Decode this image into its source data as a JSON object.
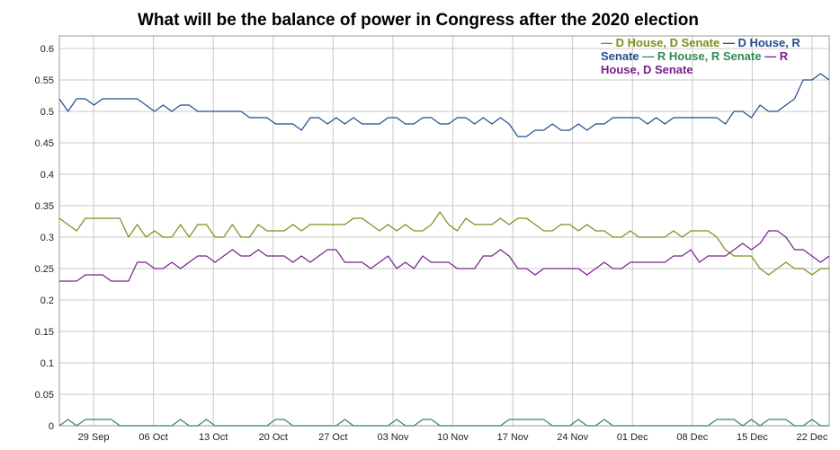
{
  "chart_data": {
    "type": "line",
    "title": "What will be the balance of power in Congress after the 2020 election",
    "xlabel": "",
    "ylabel": "",
    "ylim": [
      0,
      0.62
    ],
    "yticks": [
      "0",
      "0.05",
      "0.1",
      "0.15",
      "0.2",
      "0.25",
      "0.3",
      "0.35",
      "0.4",
      "0.45",
      "0.5",
      "0.55",
      "0.6"
    ],
    "xticks": [
      "29 Sep",
      "06 Oct",
      "13 Oct",
      "20 Oct",
      "27 Oct",
      "03 Nov",
      "10 Nov",
      "17 Nov",
      "24 Nov",
      "01 Dec",
      "08 Dec",
      "15 Dec",
      "22 Dec"
    ],
    "x_start": "2020-09-25",
    "x_end": "2020-12-24",
    "grid": true,
    "legend_position": "top-right",
    "series": [
      {
        "name": "D House, D Senate",
        "color": "#7f8c1a",
        "values": [
          0.33,
          0.32,
          0.31,
          0.33,
          0.33,
          0.33,
          0.33,
          0.33,
          0.3,
          0.32,
          0.3,
          0.31,
          0.3,
          0.3,
          0.32,
          0.3,
          0.32,
          0.32,
          0.3,
          0.3,
          0.32,
          0.3,
          0.3,
          0.32,
          0.31,
          0.31,
          0.31,
          0.32,
          0.31,
          0.32,
          0.32,
          0.32,
          0.32,
          0.32,
          0.33,
          0.33,
          0.32,
          0.31,
          0.32,
          0.31,
          0.32,
          0.31,
          0.31,
          0.32,
          0.34,
          0.32,
          0.31,
          0.33,
          0.32,
          0.32,
          0.32,
          0.33,
          0.32,
          0.33,
          0.33,
          0.32,
          0.31,
          0.31,
          0.32,
          0.32,
          0.31,
          0.32,
          0.31,
          0.31,
          0.3,
          0.3,
          0.31,
          0.3,
          0.3,
          0.3,
          0.3,
          0.31,
          0.3,
          0.31,
          0.31,
          0.31,
          0.3,
          0.28,
          0.27,
          0.27,
          0.27,
          0.25,
          0.24,
          0.25,
          0.26,
          0.25,
          0.25,
          0.24,
          0.25,
          0.25
        ]
      },
      {
        "name": "D House, R Senate",
        "color": "#1f4e8c",
        "values": [
          0.52,
          0.5,
          0.52,
          0.52,
          0.51,
          0.52,
          0.52,
          0.52,
          0.52,
          0.52,
          0.51,
          0.5,
          0.51,
          0.5,
          0.51,
          0.51,
          0.5,
          0.5,
          0.5,
          0.5,
          0.5,
          0.5,
          0.49,
          0.49,
          0.49,
          0.48,
          0.48,
          0.48,
          0.47,
          0.49,
          0.49,
          0.48,
          0.49,
          0.48,
          0.49,
          0.48,
          0.48,
          0.48,
          0.49,
          0.49,
          0.48,
          0.48,
          0.49,
          0.49,
          0.48,
          0.48,
          0.49,
          0.49,
          0.48,
          0.49,
          0.48,
          0.49,
          0.48,
          0.46,
          0.46,
          0.47,
          0.47,
          0.48,
          0.47,
          0.47,
          0.48,
          0.47,
          0.48,
          0.48,
          0.49,
          0.49,
          0.49,
          0.49,
          0.48,
          0.49,
          0.48,
          0.49,
          0.49,
          0.49,
          0.49,
          0.49,
          0.49,
          0.48,
          0.5,
          0.5,
          0.49,
          0.51,
          0.5,
          0.5,
          0.51,
          0.52,
          0.55,
          0.55,
          0.56,
          0.55
        ]
      },
      {
        "name": "R House, R Senate",
        "color": "#2e8b57",
        "values": [
          0.0,
          0.01,
          0.0,
          0.01,
          0.01,
          0.01,
          0.01,
          0.0,
          0.0,
          0.0,
          0.0,
          0.0,
          0.0,
          0.0,
          0.01,
          0.0,
          0.0,
          0.01,
          0.0,
          0.0,
          0.0,
          0.0,
          0.0,
          0.0,
          0.0,
          0.01,
          0.01,
          0.0,
          0.0,
          0.0,
          0.0,
          0.0,
          0.0,
          0.01,
          0.0,
          0.0,
          0.0,
          0.0,
          0.0,
          0.01,
          0.0,
          0.0,
          0.01,
          0.01,
          0.0,
          0.0,
          0.0,
          0.0,
          0.0,
          0.0,
          0.0,
          0.0,
          0.01,
          0.01,
          0.01,
          0.01,
          0.01,
          0.0,
          0.0,
          0.0,
          0.01,
          0.0,
          0.0,
          0.01,
          0.0,
          0.0,
          0.0,
          0.0,
          0.0,
          0.0,
          0.0,
          0.0,
          0.0,
          0.0,
          0.0,
          0.0,
          0.01,
          0.01,
          0.01,
          0.0,
          0.01,
          0.0,
          0.01,
          0.01,
          0.01,
          0.0,
          0.0,
          0.01,
          0.0,
          0.0
        ]
      },
      {
        "name": "R House, D Senate",
        "color": "#7b1f8c",
        "values": [
          0.23,
          0.23,
          0.23,
          0.24,
          0.24,
          0.24,
          0.23,
          0.23,
          0.23,
          0.26,
          0.26,
          0.25,
          0.25,
          0.26,
          0.25,
          0.26,
          0.27,
          0.27,
          0.26,
          0.27,
          0.28,
          0.27,
          0.27,
          0.28,
          0.27,
          0.27,
          0.27,
          0.26,
          0.27,
          0.26,
          0.27,
          0.28,
          0.28,
          0.26,
          0.26,
          0.26,
          0.25,
          0.26,
          0.27,
          0.25,
          0.26,
          0.25,
          0.27,
          0.26,
          0.26,
          0.26,
          0.25,
          0.25,
          0.25,
          0.27,
          0.27,
          0.28,
          0.27,
          0.25,
          0.25,
          0.24,
          0.25,
          0.25,
          0.25,
          0.25,
          0.25,
          0.24,
          0.25,
          0.26,
          0.25,
          0.25,
          0.26,
          0.26,
          0.26,
          0.26,
          0.26,
          0.27,
          0.27,
          0.28,
          0.26,
          0.27,
          0.27,
          0.27,
          0.28,
          0.29,
          0.28,
          0.29,
          0.31,
          0.31,
          0.3,
          0.28,
          0.28,
          0.27,
          0.26,
          0.27
        ]
      }
    ]
  }
}
